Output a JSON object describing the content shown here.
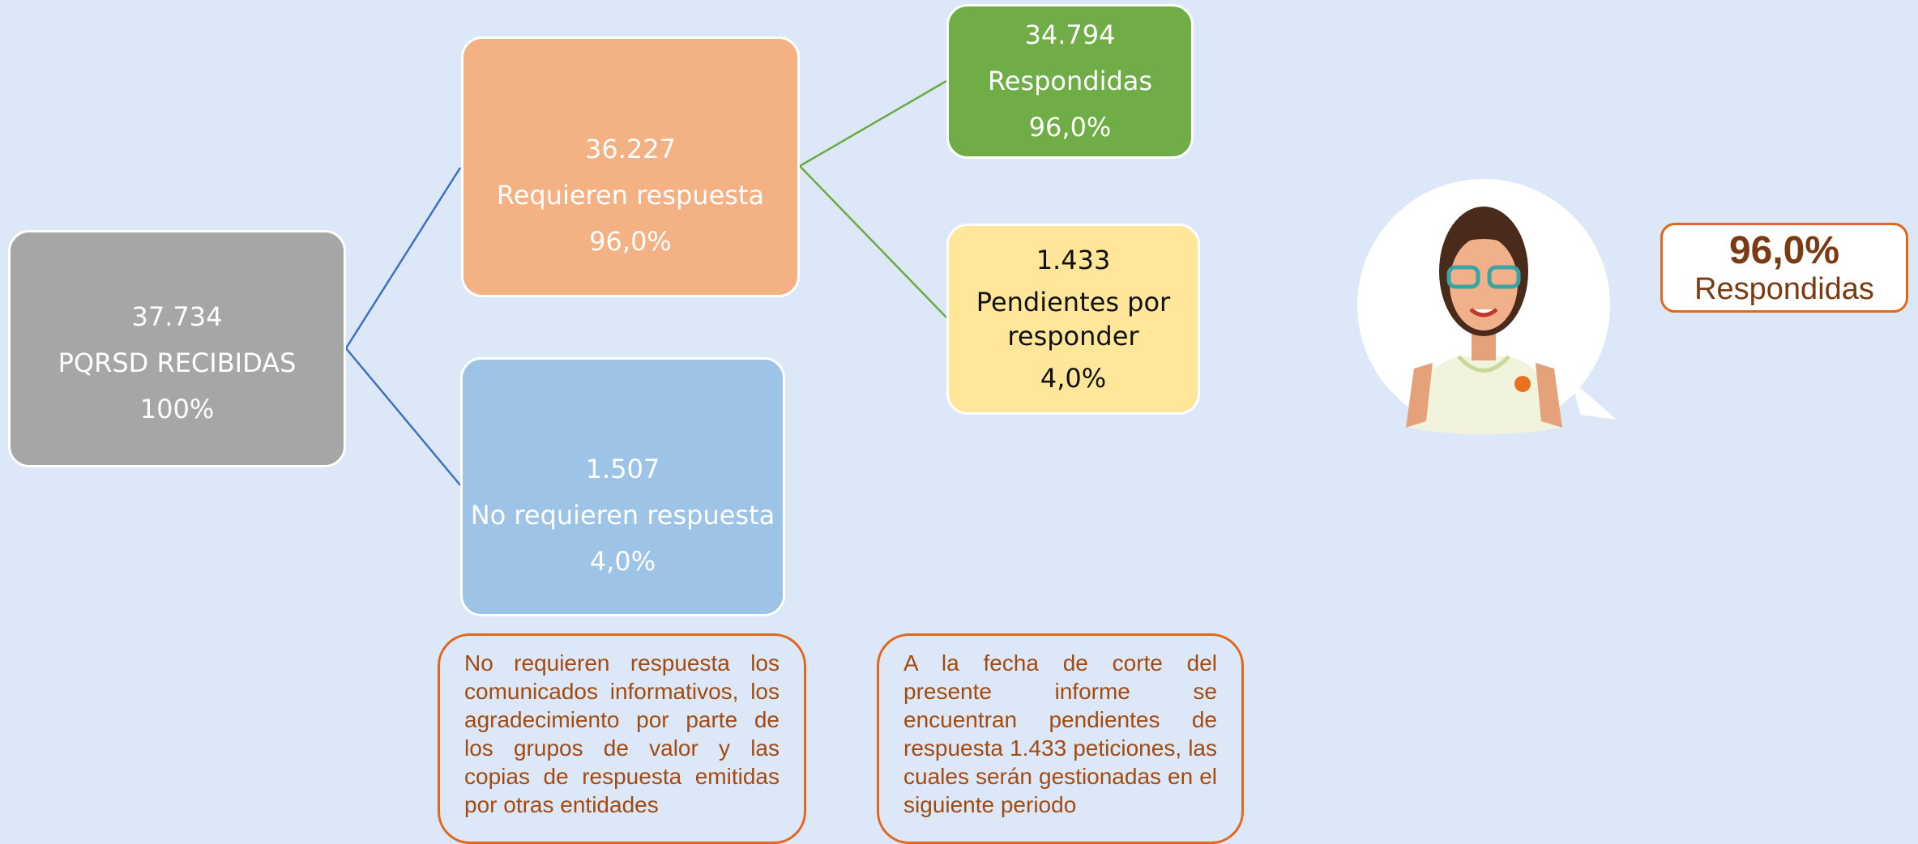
{
  "nodes": [
    {
      "value": "37.734",
      "label": "PQRSD RECIBIDAS",
      "percent": "100%"
    },
    {
      "value": "36.227",
      "label": "Requieren respuesta",
      "percent": "96,0%"
    },
    {
      "value": "1.507",
      "label": "No requieren respuesta",
      "percent": "4,0%"
    },
    {
      "value": "34.794",
      "label": "Respondidas",
      "percent": "96,0%"
    },
    {
      "value": "1.433",
      "label": "Pendientes por responder",
      "percent": "4,0%"
    }
  ],
  "notes": [
    "No requieren respuesta los comunicados informativos, los agradecimiento por parte de los grupos de valor  y las copias de respuesta emitidas por otras entidades",
    "A la fecha de corte del presente informe se encuentran pendientes de respuesta 1.433 peticiones, las cuales serán gestionadas en el siguiente periodo"
  ],
  "badge": {
    "percent": "96,0%",
    "label": "Respondidas"
  }
}
